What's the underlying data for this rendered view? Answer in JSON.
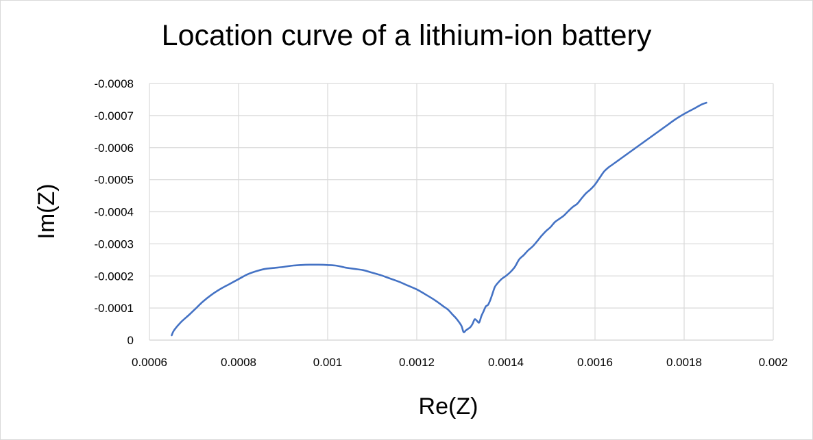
{
  "chart_data": {
    "type": "line",
    "title": "Location curve of a lithium-ion battery",
    "xlabel": "Re(Z)",
    "ylabel": "Im(Z)",
    "xlim": [
      0.0006,
      0.002
    ],
    "ylim": [
      0,
      -0.0008
    ],
    "y_axis_inverted": true,
    "grid": true,
    "legend": "none",
    "x_ticks": [
      0.0006,
      0.0008,
      0.001,
      0.0012,
      0.0014,
      0.0016,
      0.0018,
      0.002
    ],
    "x_tick_labels": [
      "0.0006",
      "0.0008",
      "0.001",
      "0.0012",
      "0.0014",
      "0.0016",
      "0.0018",
      "0.002"
    ],
    "y_ticks": [
      0,
      -0.0001,
      -0.0002,
      -0.0003,
      -0.0004,
      -0.0005,
      -0.0006,
      -0.0007,
      -0.0008
    ],
    "y_tick_labels": [
      "0",
      "-0.0001",
      "-0.0002",
      "-0.0003",
      "-0.0004",
      "-0.0005",
      "-0.0006",
      "-0.0007",
      "-0.0008"
    ],
    "series": [
      {
        "color": "#4472c4",
        "x": [
          0.00065,
          0.000655,
          0.00067,
          0.00069,
          0.000705,
          0.00072,
          0.00074,
          0.00076,
          0.00078,
          0.0008,
          0.00082,
          0.00084,
          0.00086,
          0.00088,
          0.0009,
          0.00092,
          0.00094,
          0.00096,
          0.00098,
          0.001,
          0.00102,
          0.00104,
          0.00106,
          0.00108,
          0.0011,
          0.00112,
          0.00114,
          0.00116,
          0.00118,
          0.0012,
          0.00122,
          0.00124,
          0.00126,
          0.00127,
          0.00128,
          0.00129,
          0.0013,
          0.001305,
          0.00131,
          0.001315,
          0.00132,
          0.001325,
          0.00133,
          0.001335,
          0.00134,
          0.001345,
          0.00135,
          0.001355,
          0.00136,
          0.001365,
          0.00137,
          0.001375,
          0.00138,
          0.00139,
          0.0014,
          0.00141,
          0.00142,
          0.00143,
          0.00144,
          0.00145,
          0.00146,
          0.00147,
          0.00148,
          0.00149,
          0.0015,
          0.00151,
          0.00152,
          0.00153,
          0.00154,
          0.00155,
          0.00156,
          0.00157,
          0.00158,
          0.00159,
          0.0016,
          0.00161,
          0.00162,
          0.00163,
          0.00164,
          0.00166,
          0.00168,
          0.0017,
          0.00172,
          0.00174,
          0.00176,
          0.00178,
          0.0018,
          0.00182,
          0.00184,
          0.00185
        ],
        "y": [
          -1.5e-05,
          -3e-05,
          -5.5e-05,
          -8e-05,
          -0.0001,
          -0.00012,
          -0.000142,
          -0.00016,
          -0.000175,
          -0.00019,
          -0.000205,
          -0.000215,
          -0.000222,
          -0.000225,
          -0.000228,
          -0.000232,
          -0.000234,
          -0.000235,
          -0.000235,
          -0.000234,
          -0.000232,
          -0.000226,
          -0.000222,
          -0.000218,
          -0.00021,
          -0.000202,
          -0.000192,
          -0.000182,
          -0.00017,
          -0.000158,
          -0.000142,
          -0.000125,
          -0.000105,
          -9.5e-05,
          -8e-05,
          -6.5e-05,
          -4.5e-05,
          -2.5e-05,
          -3e-05,
          -3.5e-05,
          -4e-05,
          -5e-05,
          -6.5e-05,
          -6e-05,
          -5.5e-05,
          -7.5e-05,
          -9e-05,
          -0.000105,
          -0.00011,
          -0.000125,
          -0.000145,
          -0.000165,
          -0.000175,
          -0.00019,
          -0.0002,
          -0.000212,
          -0.000228,
          -0.000252,
          -0.000265,
          -0.00028,
          -0.000292,
          -0.000308,
          -0.000325,
          -0.00034,
          -0.000352,
          -0.000368,
          -0.000378,
          -0.000388,
          -0.000402,
          -0.000415,
          -0.000425,
          -0.000442,
          -0.000458,
          -0.00047,
          -0.000485,
          -0.000505,
          -0.000525,
          -0.000538,
          -0.000548,
          -0.000568,
          -0.000588,
          -0.000608,
          -0.000628,
          -0.000648,
          -0.000668,
          -0.000688,
          -0.000705,
          -0.00072,
          -0.000735,
          -0.00074
        ]
      }
    ]
  }
}
